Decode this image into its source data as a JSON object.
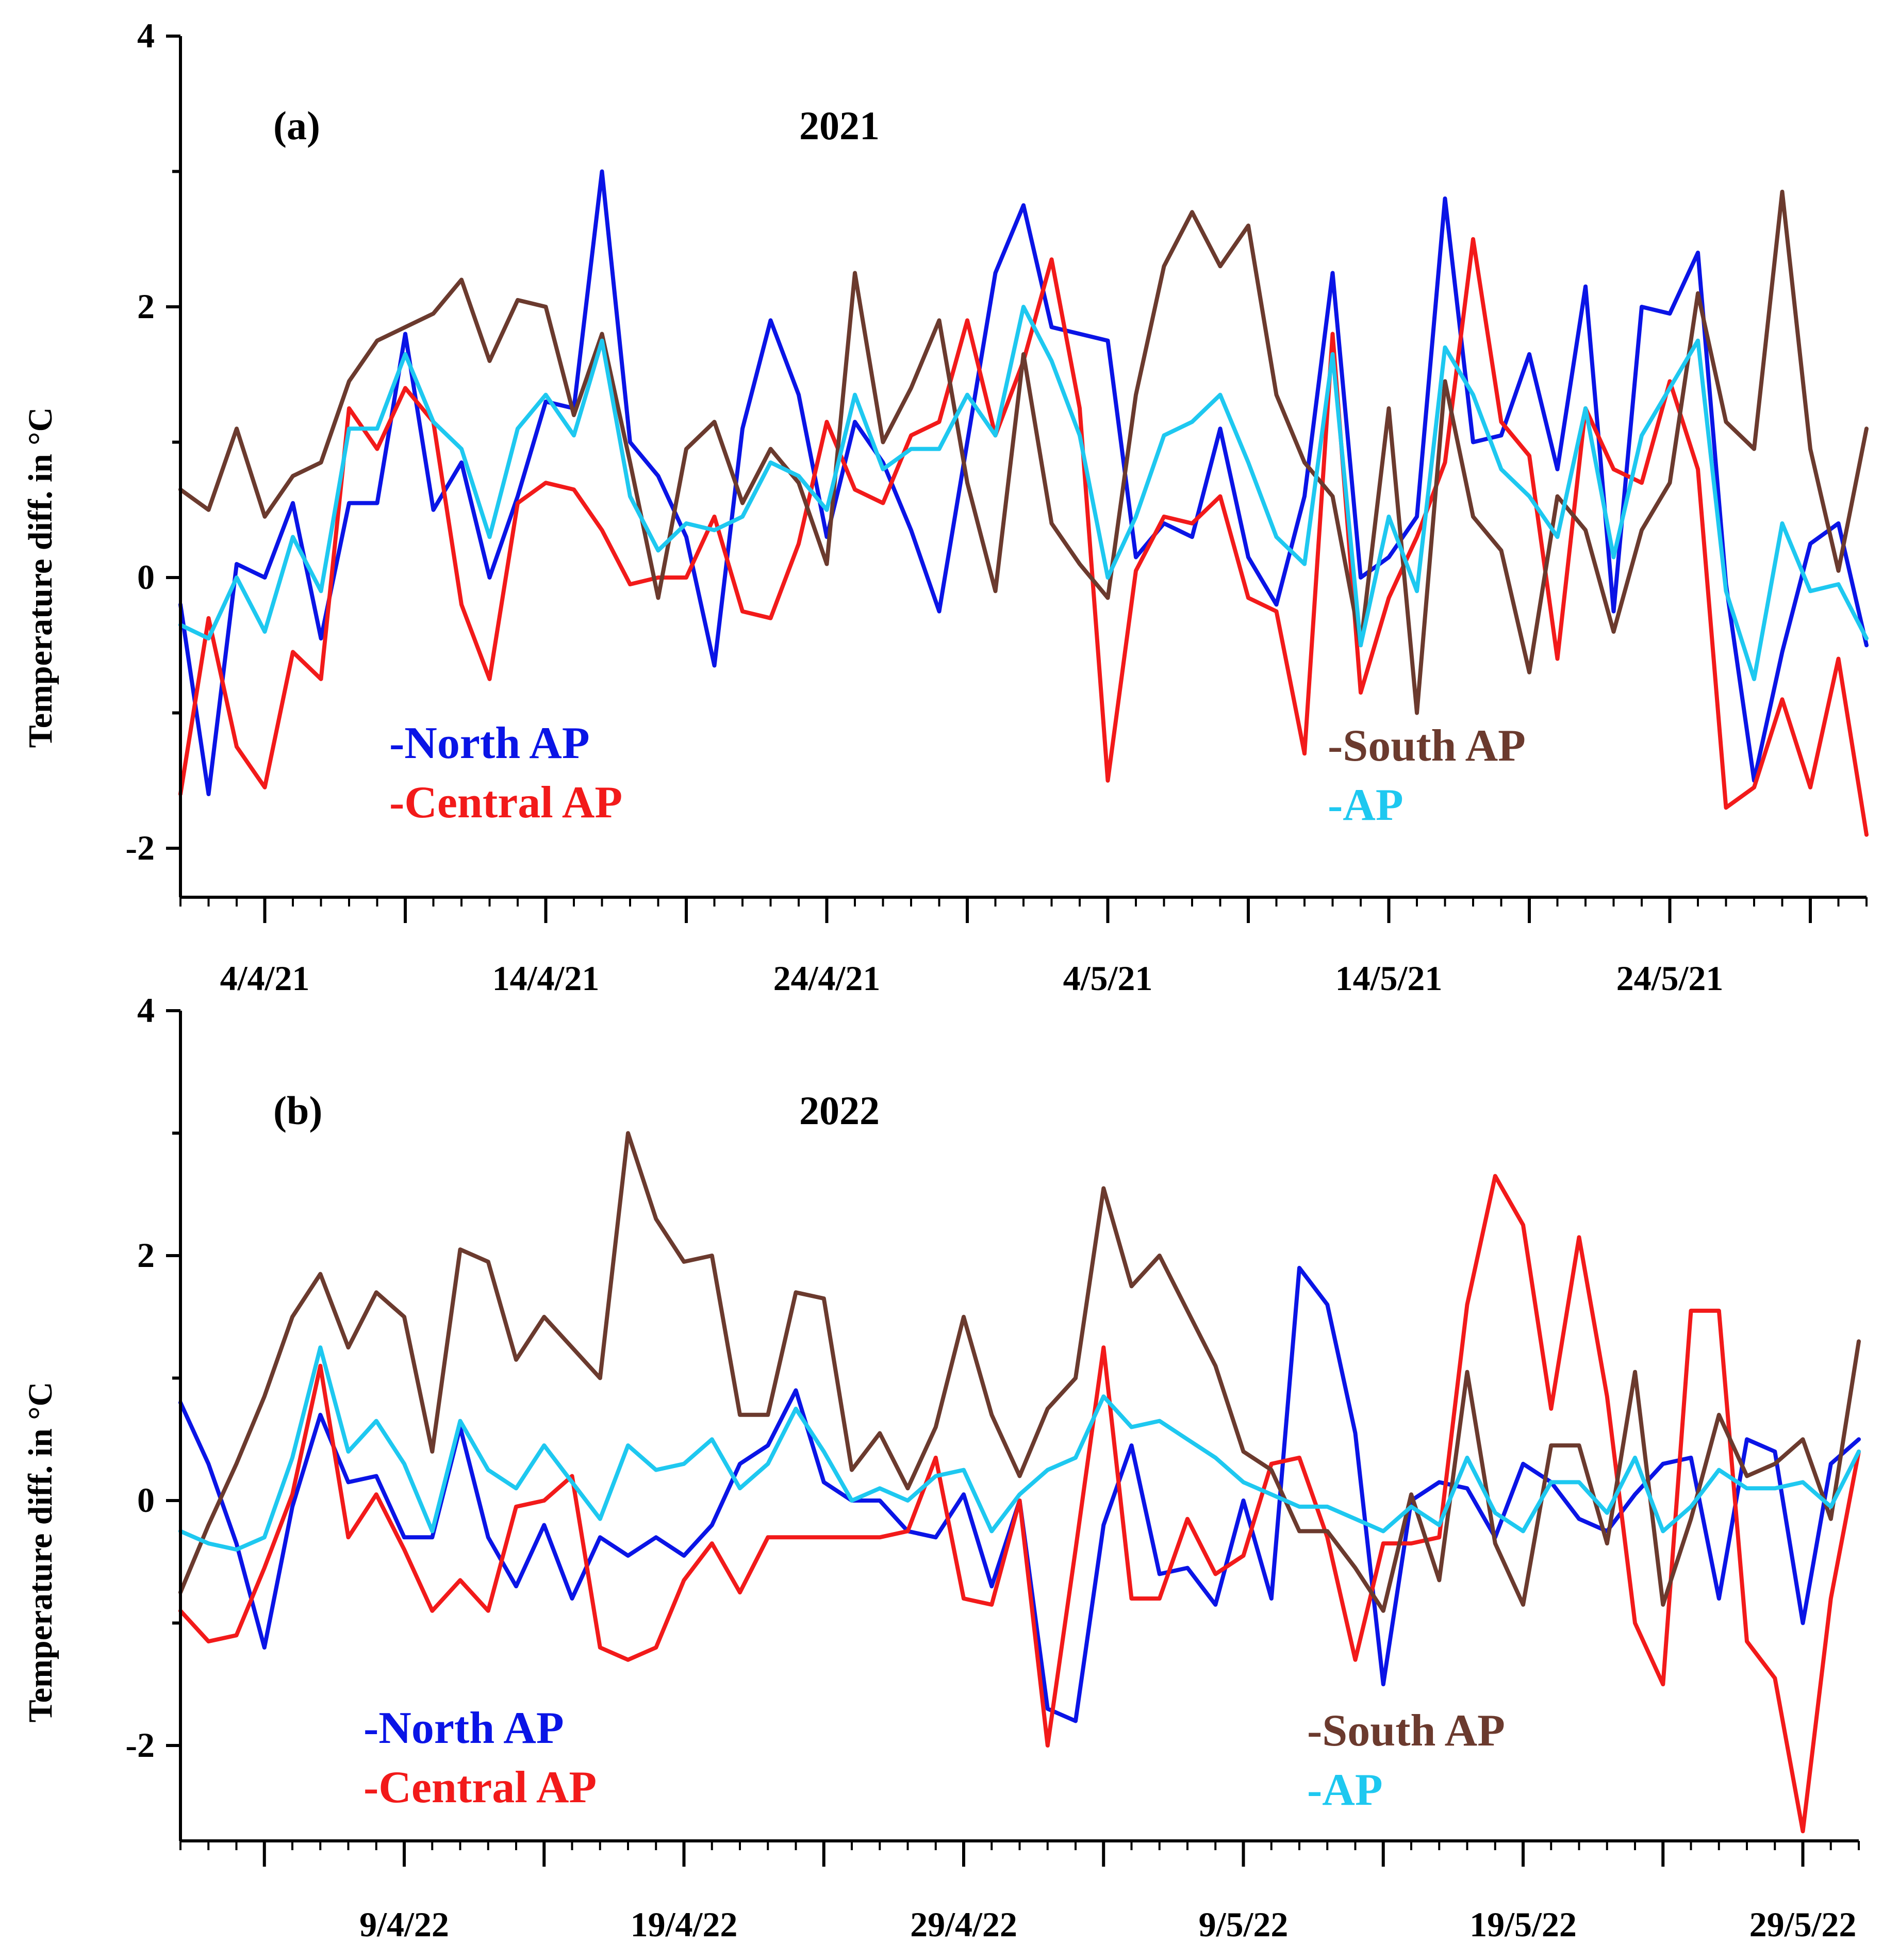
{
  "chart_data": [
    {
      "type": "line",
      "panel": "(a)",
      "title": "2021",
      "ylabel": "Temperature diff. in °C",
      "ylim": [
        -2.4,
        4
      ],
      "yticks": [
        -2,
        0,
        2,
        4
      ],
      "ytick_labels": [
        "-2",
        "0",
        "2",
        "4"
      ],
      "x_start_day": 1,
      "x_end_day": 61,
      "xtick_days": [
        4,
        14,
        24,
        34,
        44,
        54
      ],
      "xtick_labels": [
        "4/4/21",
        "14/4/21",
        "24/4/21",
        "4/5/21",
        "14/5/21",
        "24/5/21"
      ],
      "series": [
        {
          "name": "North AP",
          "legend_label": "-North AP",
          "color": "#0a14e6",
          "values": [
            -0.2,
            -1.6,
            0.1,
            0.0,
            0.55,
            -0.45,
            0.55,
            0.55,
            1.8,
            0.5,
            0.85,
            0.0,
            0.6,
            1.3,
            1.25,
            3.0,
            1.0,
            0.75,
            0.3,
            -0.65,
            1.1,
            1.9,
            1.35,
            0.3,
            1.15,
            0.85,
            0.35,
            -0.25,
            1.0,
            2.25,
            2.75,
            1.85,
            1.8,
            1.75,
            0.15,
            0.4,
            0.3,
            1.1,
            0.15,
            -0.2,
            0.6,
            2.25,
            0.0,
            0.15,
            0.45,
            2.8,
            1.0,
            1.05,
            1.65,
            0.8,
            2.15,
            -0.25,
            2.0,
            1.95,
            2.4,
            -0.05,
            -1.5,
            -0.55,
            0.25,
            0.4,
            -0.5
          ]
        },
        {
          "name": "Central AP",
          "legend_label": "-Central AP",
          "color": "#f21a1a",
          "values": [
            -1.6,
            -0.3,
            -1.25,
            -1.55,
            -0.55,
            -0.75,
            1.25,
            0.95,
            1.4,
            1.15,
            -0.2,
            -0.75,
            0.55,
            0.7,
            0.65,
            0.35,
            -0.05,
            0.0,
            0.0,
            0.45,
            -0.25,
            -0.3,
            0.25,
            1.15,
            0.65,
            0.55,
            1.05,
            1.15,
            1.9,
            1.05,
            1.6,
            2.35,
            1.25,
            -1.5,
            0.05,
            0.45,
            0.4,
            0.6,
            -0.15,
            -0.25,
            -1.3,
            1.8,
            -0.85,
            -0.15,
            0.3,
            0.85,
            2.5,
            1.15,
            0.9,
            -0.6,
            1.25,
            0.8,
            0.7,
            1.45,
            0.8,
            -1.7,
            -1.55,
            -0.9,
            -1.55,
            -0.6,
            -1.9
          ]
        },
        {
          "name": "South AP",
          "legend_label": "-South AP",
          "color": "#6b3a2e",
          "values": [
            0.65,
            0.5,
            1.1,
            0.45,
            0.75,
            0.85,
            1.45,
            1.75,
            1.85,
            1.95,
            2.2,
            1.6,
            2.05,
            2.0,
            1.2,
            1.8,
            0.85,
            -0.15,
            0.95,
            1.15,
            0.55,
            0.95,
            0.7,
            0.1,
            2.25,
            1.0,
            1.4,
            1.9,
            0.7,
            -0.1,
            1.65,
            0.4,
            0.1,
            -0.15,
            1.35,
            2.3,
            2.7,
            2.3,
            2.6,
            1.35,
            0.85,
            0.6,
            -0.5,
            1.25,
            -1.0,
            1.45,
            0.45,
            0.2,
            -0.7,
            0.6,
            0.35,
            -0.4,
            0.35,
            0.7,
            2.1,
            1.15,
            0.95,
            2.85,
            0.95,
            0.05,
            1.1
          ]
        },
        {
          "name": "AP",
          "legend_label": "-AP",
          "color": "#1ec8f0",
          "values": [
            -0.35,
            -0.45,
            0.0,
            -0.4,
            0.3,
            -0.1,
            1.1,
            1.1,
            1.65,
            1.15,
            0.95,
            0.3,
            1.1,
            1.35,
            1.05,
            1.75,
            0.6,
            0.2,
            0.4,
            0.35,
            0.45,
            0.85,
            0.75,
            0.5,
            1.35,
            0.8,
            0.95,
            0.95,
            1.35,
            1.05,
            2.0,
            1.6,
            1.05,
            0.0,
            0.45,
            1.05,
            1.15,
            1.35,
            0.85,
            0.3,
            0.1,
            1.65,
            -0.5,
            0.45,
            -0.1,
            1.7,
            1.35,
            0.8,
            0.6,
            0.3,
            1.25,
            0.15,
            1.05,
            1.4,
            1.75,
            -0.1,
            -0.75,
            0.4,
            -0.1,
            -0.05,
            -0.45
          ]
        }
      ]
    },
    {
      "type": "line",
      "panel": "(b)",
      "title": "2022",
      "ylabel": "Temperature diff. in °C",
      "ylim": [
        -2.8,
        4
      ],
      "yticks": [
        -2,
        0,
        2,
        4
      ],
      "ytick_labels": [
        "-2",
        "0",
        "2",
        "4"
      ],
      "x_start_day": 1,
      "x_end_day": 61,
      "xtick_days": [
        9,
        19,
        29,
        39,
        49,
        59
      ],
      "xtick_labels": [
        "9/4/22",
        "19/4/22",
        "29/4/22",
        "9/5/22",
        "19/5/22",
        "29/5/22"
      ],
      "series": [
        {
          "name": "North AP",
          "legend_label": "-North AP",
          "color": "#0a14e6",
          "values": [
            0.8,
            0.3,
            -0.35,
            -1.2,
            -0.05,
            0.7,
            0.15,
            0.2,
            -0.3,
            -0.3,
            0.6,
            -0.3,
            -0.7,
            -0.2,
            -0.8,
            -0.3,
            -0.45,
            -0.3,
            -0.45,
            -0.2,
            0.3,
            0.45,
            0.9,
            0.15,
            0.0,
            0.0,
            -0.25,
            -0.3,
            0.05,
            -0.7,
            0.0,
            -1.7,
            -1.8,
            -0.2,
            0.45,
            -0.6,
            -0.55,
            -0.85,
            0.0,
            -0.8,
            1.9,
            1.6,
            0.55,
            -1.5,
            0.0,
            0.15,
            0.1,
            -0.3,
            0.3,
            0.15,
            -0.15,
            -0.25,
            0.05,
            0.3,
            0.35,
            -0.8,
            0.5,
            0.4,
            -1.0,
            0.3,
            0.5
          ]
        },
        {
          "name": "Central AP",
          "legend_label": "-Central AP",
          "color": "#f21a1a",
          "values": [
            -0.9,
            -1.15,
            -1.1,
            -0.55,
            0.05,
            1.1,
            -0.3,
            0.05,
            -0.4,
            -0.9,
            -0.65,
            -0.9,
            -0.05,
            0.0,
            0.2,
            -1.2,
            -1.3,
            -1.2,
            -0.65,
            -0.35,
            -0.75,
            -0.3,
            -0.3,
            -0.3,
            -0.3,
            -0.3,
            -0.25,
            0.35,
            -0.8,
            -0.85,
            0.0,
            -2.0,
            -0.4,
            1.25,
            -0.8,
            -0.8,
            -0.15,
            -0.6,
            -0.45,
            0.3,
            0.35,
            -0.3,
            -1.3,
            -0.35,
            -0.35,
            -0.3,
            1.6,
            2.65,
            2.25,
            0.75,
            2.15,
            0.85,
            -1.0,
            -1.5,
            1.55,
            1.55,
            -1.15,
            -1.45,
            -2.7,
            -0.8,
            0.4
          ]
        },
        {
          "name": "South AP",
          "legend_label": "-South AP",
          "color": "#6b3a2e",
          "values": [
            -0.75,
            -0.2,
            0.3,
            0.85,
            1.5,
            1.85,
            1.25,
            1.7,
            1.5,
            0.4,
            2.05,
            1.95,
            1.15,
            1.5,
            1.25,
            1.0,
            3.0,
            2.3,
            1.95,
            2.0,
            0.7,
            0.7,
            1.7,
            1.65,
            0.25,
            0.55,
            0.1,
            0.6,
            1.5,
            0.7,
            0.2,
            0.75,
            1.0,
            2.55,
            1.75,
            2.0,
            1.55,
            1.1,
            0.4,
            0.25,
            -0.25,
            -0.25,
            -0.55,
            -0.9,
            0.05,
            -0.65,
            1.05,
            -0.35,
            -0.85,
            0.45,
            0.45,
            -0.35,
            1.05,
            -0.85,
            -0.15,
            0.7,
            0.2,
            0.3,
            0.5,
            -0.15,
            1.3
          ]
        },
        {
          "name": "AP",
          "legend_label": "-AP",
          "color": "#1ec8f0",
          "values": [
            -0.25,
            -0.35,
            -0.4,
            -0.3,
            0.35,
            1.25,
            0.4,
            0.65,
            0.3,
            -0.25,
            0.65,
            0.25,
            0.1,
            0.45,
            0.15,
            -0.15,
            0.45,
            0.25,
            0.3,
            0.5,
            0.1,
            0.3,
            0.75,
            0.4,
            0.0,
            0.1,
            0.0,
            0.2,
            0.25,
            -0.25,
            0.05,
            0.25,
            0.35,
            0.85,
            0.6,
            0.65,
            0.5,
            0.35,
            0.15,
            0.05,
            -0.05,
            -0.05,
            -0.15,
            -0.25,
            -0.05,
            -0.2,
            0.35,
            -0.1,
            -0.25,
            0.15,
            0.15,
            -0.1,
            0.35,
            -0.25,
            -0.05,
            0.25,
            0.1,
            0.1,
            0.15,
            -0.05,
            0.4
          ]
        }
      ]
    }
  ]
}
